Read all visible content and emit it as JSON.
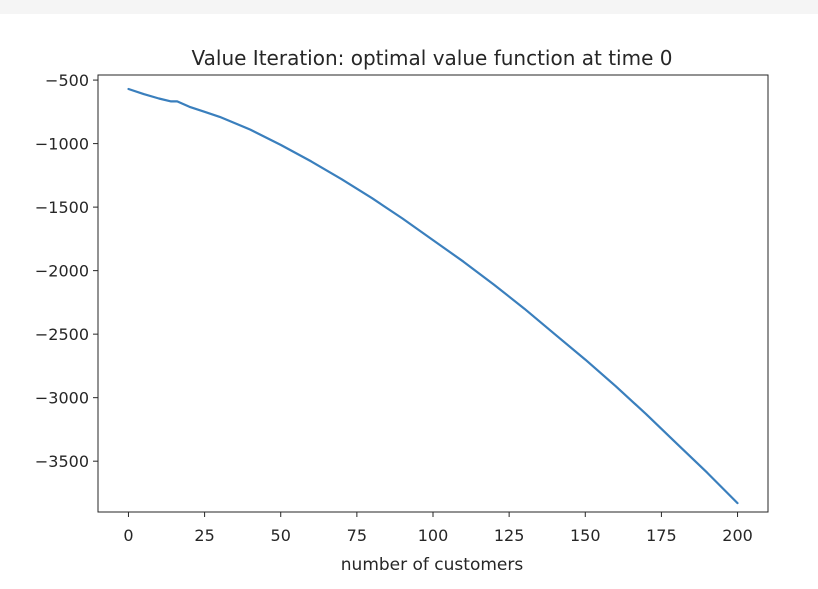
{
  "chart_data": {
    "type": "line",
    "title": "Value Iteration: optimal value function at time 0",
    "xlabel": "number of customers",
    "ylabel": "",
    "xlim": [
      -10,
      210
    ],
    "ylim": [
      -3900,
      -460
    ],
    "x_ticks": [
      0,
      25,
      50,
      75,
      100,
      125,
      150,
      175,
      200
    ],
    "x_tick_labels": [
      "0",
      "25",
      "50",
      "75",
      "100",
      "125",
      "150",
      "175",
      "200"
    ],
    "y_ticks": [
      -500,
      -1000,
      -1500,
      -2000,
      -2500,
      -3000,
      -3500
    ],
    "y_tick_labels": [
      "−500",
      "−1000",
      "−1500",
      "−2000",
      "−2500",
      "−3000",
      "−3500"
    ],
    "grid": false,
    "series": [
      {
        "name": "optimal value",
        "color": "#3a7fbd",
        "x": [
          0,
          5,
          10,
          14,
          16,
          20,
          25,
          30,
          40,
          50,
          60,
          70,
          80,
          90,
          100,
          110,
          120,
          130,
          140,
          150,
          160,
          170,
          180,
          190,
          200
        ],
        "y": [
          -570,
          -610,
          -645,
          -668,
          -668,
          -710,
          -750,
          -790,
          -890,
          -1010,
          -1140,
          -1280,
          -1430,
          -1590,
          -1760,
          -1930,
          -2110,
          -2300,
          -2500,
          -2700,
          -2910,
          -3130,
          -3360,
          -3590,
          -3830
        ]
      }
    ]
  }
}
